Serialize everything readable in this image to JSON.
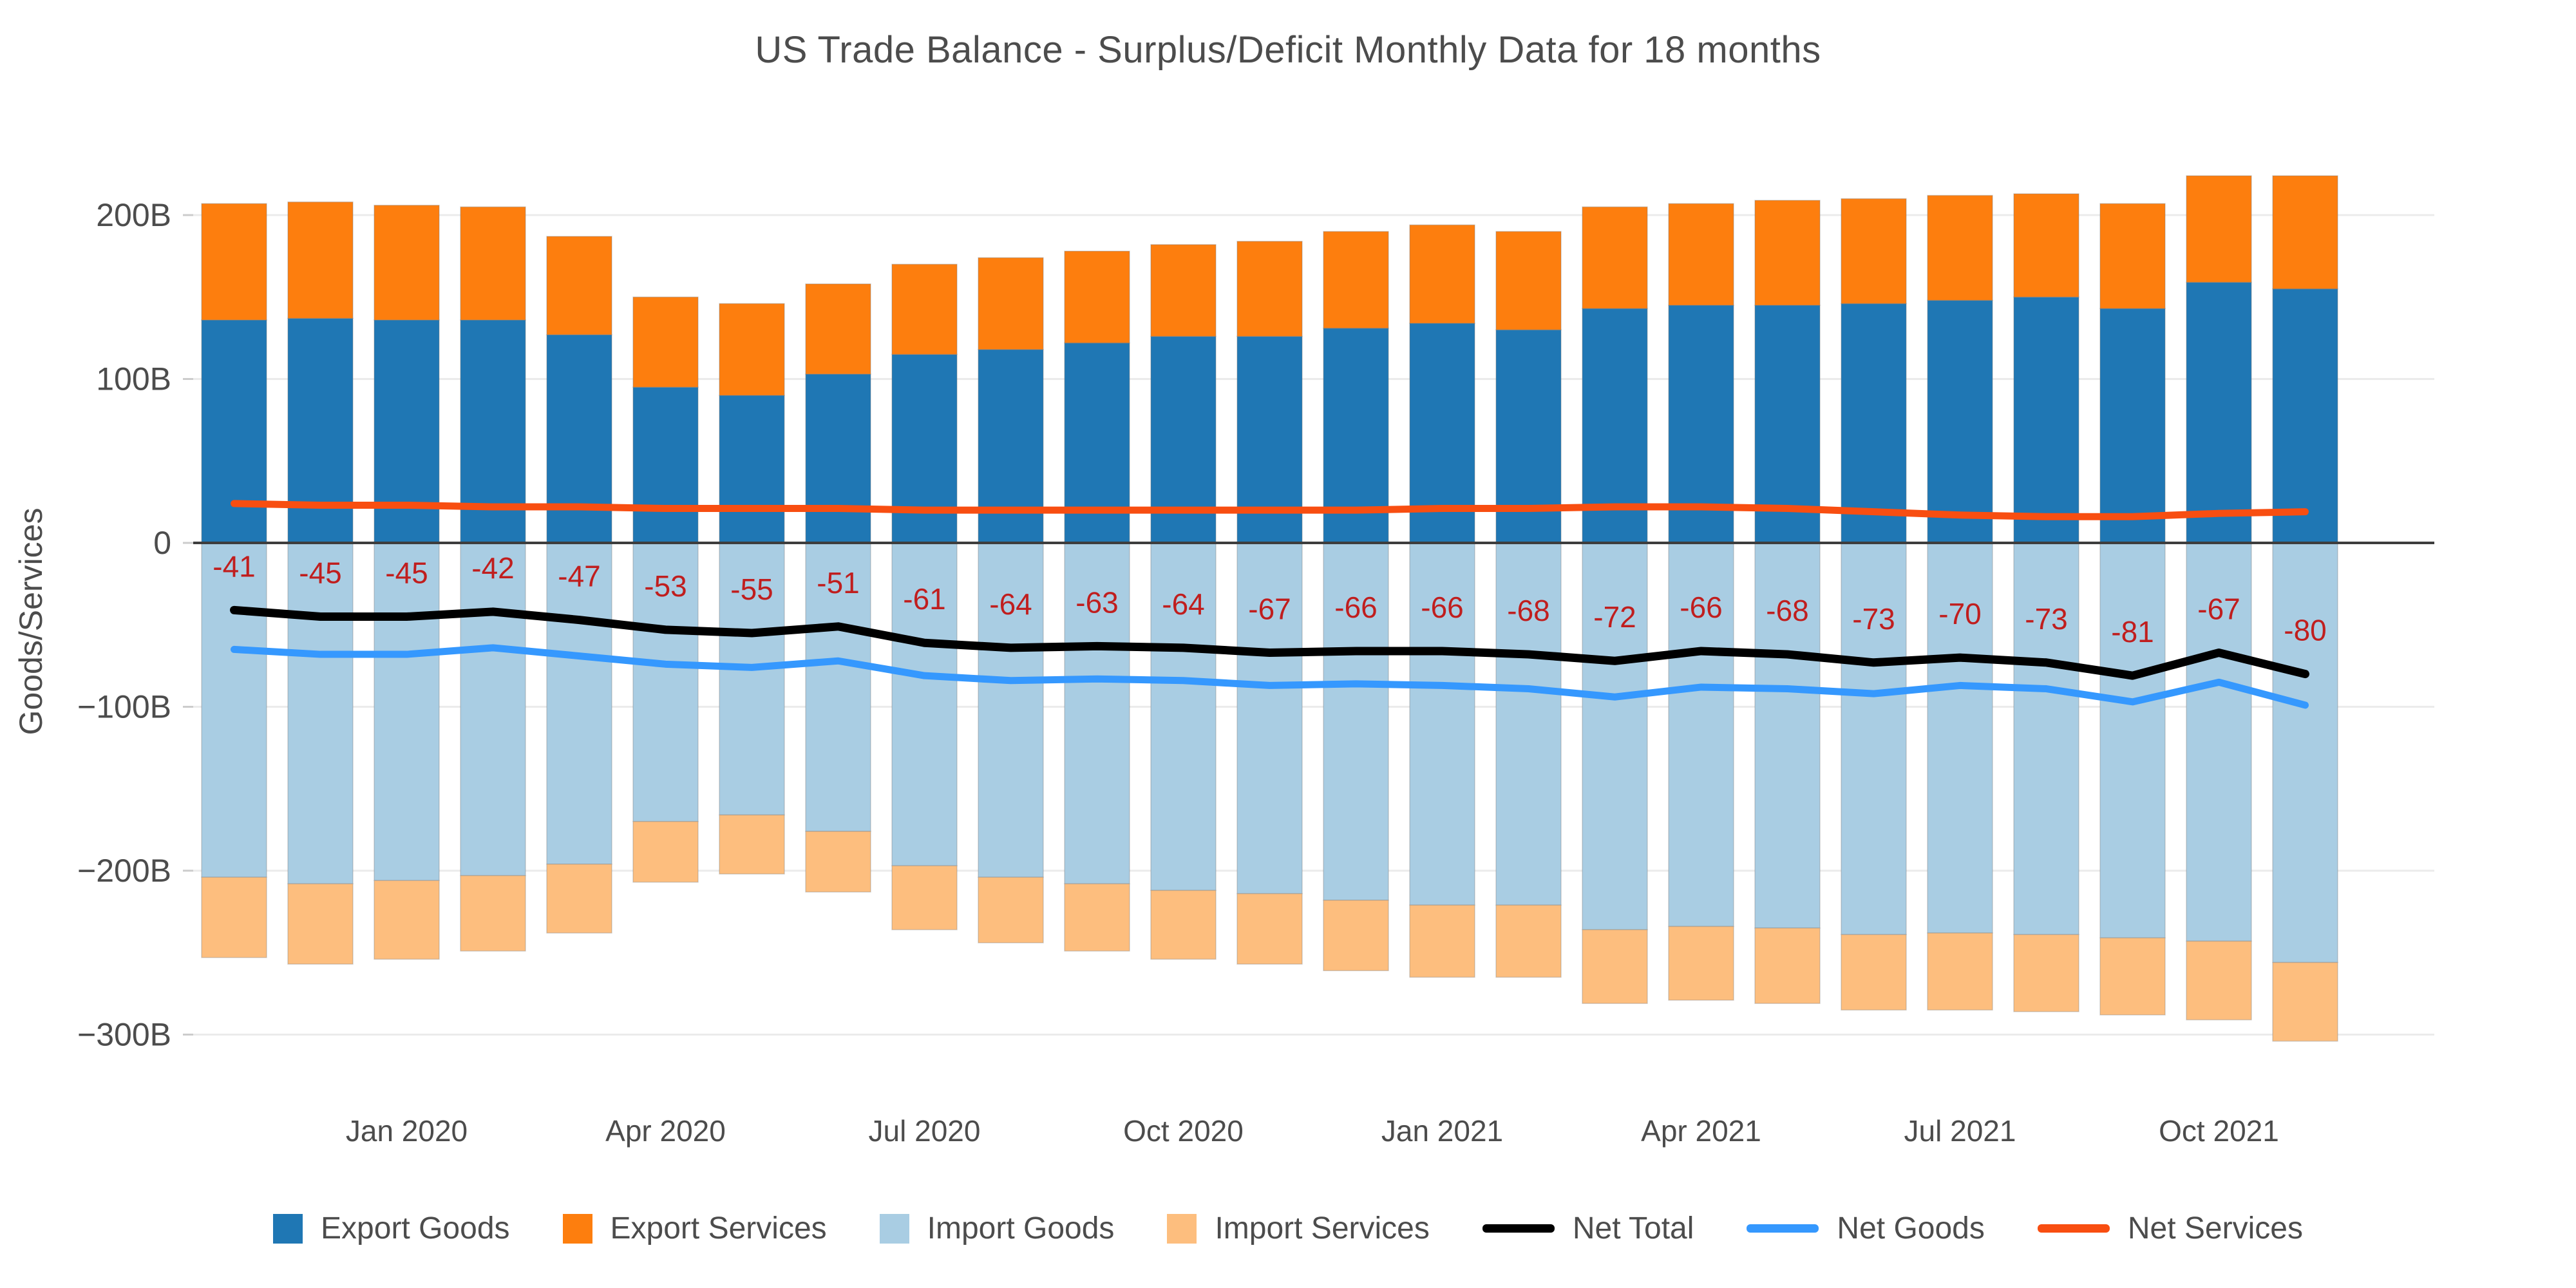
{
  "chart": {
    "title": "US Trade Balance - Surplus/Deficit Monthly Data for 18 months",
    "y_axis_title": "Goods/Services"
  },
  "colors": {
    "export_goods": "#1f77b4",
    "export_services": "#fd7e0e",
    "import_goods": "#a9cde3",
    "import_services": "#fdbe7e",
    "net_total": "#000000",
    "net_goods": "#3598fe",
    "net_services": "#f84e11",
    "grid": "#ebebeb",
    "zero_line": "#3d3d3d",
    "axis_text": "#4c4c4c",
    "tick_mark": "#cccccc",
    "data_label": "#c01e1e",
    "background": "#ffffff"
  },
  "y_ticks": [
    {
      "value": 200,
      "label": "200B"
    },
    {
      "value": 100,
      "label": "100B"
    },
    {
      "value": 0,
      "label": "0"
    },
    {
      "value": -100,
      "label": "−100B"
    },
    {
      "value": -200,
      "label": "−200B"
    },
    {
      "value": -300,
      "label": "−300B"
    }
  ],
  "x_ticks": [
    {
      "index": 2,
      "label": "Jan 2020"
    },
    {
      "index": 5,
      "label": "Apr 2020"
    },
    {
      "index": 8,
      "label": "Jul 2020"
    },
    {
      "index": 11,
      "label": "Oct 2020"
    },
    {
      "index": 14,
      "label": "Jan 2021"
    },
    {
      "index": 17,
      "label": "Apr 2021"
    },
    {
      "index": 20,
      "label": "Jul 2021"
    },
    {
      "index": 23,
      "label": "Oct 2021"
    }
  ],
  "legend": [
    {
      "label": "Export Goods",
      "swatch": "square",
      "color_key": "export_goods"
    },
    {
      "label": "Export Services",
      "swatch": "square",
      "color_key": "export_services"
    },
    {
      "label": "Import Goods",
      "swatch": "square",
      "color_key": "import_goods"
    },
    {
      "label": "Import Services",
      "swatch": "square",
      "color_key": "import_services"
    },
    {
      "label": "Net Total",
      "swatch": "line",
      "color_key": "net_total"
    },
    {
      "label": "Net Goods",
      "swatch": "line",
      "color_key": "net_goods"
    },
    {
      "label": "Net Services",
      "swatch": "line",
      "color_key": "net_services"
    }
  ],
  "chart_data": {
    "type": "bar",
    "stacked": true,
    "title": "US Trade Balance - Surplus/Deficit Monthly Data for 18 months",
    "xlabel": "",
    "ylabel": "Goods/Services",
    "ylim": [
      -320,
      240
    ],
    "grid": true,
    "legend_position": "bottom",
    "units": "billions USD",
    "categories": [
      "Nov 2019",
      "Dec 2019",
      "Jan 2020",
      "Feb 2020",
      "Mar 2020",
      "Apr 2020",
      "May 2020",
      "Jun 2020",
      "Jul 2020",
      "Aug 2020",
      "Sep 2020",
      "Oct 2020",
      "Nov 2020",
      "Dec 2020",
      "Jan 2021",
      "Feb 2021",
      "Mar 2021",
      "Apr 2021",
      "May 2021",
      "Jun 2021",
      "Jul 2021",
      "Aug 2021",
      "Sep 2021",
      "Oct 2021",
      "Nov 2021"
    ],
    "series": [
      {
        "name": "Export Goods",
        "type": "bar",
        "stack": "positive",
        "values": [
          136,
          137,
          136,
          136,
          127,
          95,
          90,
          103,
          115,
          118,
          122,
          126,
          126,
          131,
          134,
          130,
          143,
          145,
          145,
          146,
          148,
          150,
          143,
          159,
          155
        ]
      },
      {
        "name": "Export Services",
        "type": "bar",
        "stack": "positive",
        "values": [
          71,
          71,
          70,
          69,
          60,
          55,
          56,
          55,
          55,
          56,
          56,
          56,
          58,
          59,
          60,
          60,
          62,
          62,
          64,
          64,
          64,
          63,
          64,
          65,
          69
        ]
      },
      {
        "name": "Import Goods",
        "type": "bar",
        "stack": "negative",
        "values": [
          -204,
          -208,
          -206,
          -203,
          -196,
          -170,
          -166,
          -176,
          -197,
          -204,
          -208,
          -212,
          -214,
          -218,
          -221,
          -221,
          -236,
          -234,
          -235,
          -239,
          -238,
          -239,
          -241,
          -243,
          -256
        ]
      },
      {
        "name": "Import Services",
        "type": "bar",
        "stack": "negative",
        "values": [
          -49,
          -49,
          -48,
          -46,
          -42,
          -37,
          -36,
          -37,
          -39,
          -40,
          -41,
          -42,
          -43,
          -43,
          -44,
          -44,
          -45,
          -45,
          -46,
          -46,
          -47,
          -47,
          -47,
          -48,
          -48
        ]
      },
      {
        "name": "Net Total",
        "type": "line",
        "values": [
          -41,
          -45,
          -45,
          -42,
          -47,
          -53,
          -55,
          -51,
          -61,
          -64,
          -63,
          -64,
          -67,
          -66,
          -66,
          -68,
          -72,
          -66,
          -68,
          -73,
          -70,
          -73,
          -81,
          -67,
          -80
        ]
      },
      {
        "name": "Net Goods",
        "type": "line",
        "values": [
          -65,
          -68,
          -68,
          -64,
          -69,
          -74,
          -76,
          -72,
          -81,
          -84,
          -83,
          -84,
          -87,
          -86,
          -87,
          -89,
          -94,
          -88,
          -89,
          -92,
          -87,
          -89,
          -97,
          -85,
          -99
        ]
      },
      {
        "name": "Net Services",
        "type": "line",
        "values": [
          24,
          23,
          23,
          22,
          22,
          21,
          21,
          21,
          20,
          20,
          20,
          20,
          20,
          20,
          21,
          21,
          22,
          22,
          21,
          19,
          17,
          16,
          16,
          18,
          19
        ]
      }
    ],
    "data_labels": {
      "series": "Net Total",
      "color": "#c01e1e",
      "values": [
        -41,
        -45,
        -45,
        -42,
        -47,
        -53,
        -55,
        -51,
        -61,
        -64,
        -63,
        -64,
        -67,
        -66,
        -66,
        -68,
        -72,
        -66,
        -68,
        -73,
        -70,
        -73,
        -81,
        -67,
        -80
      ]
    }
  }
}
